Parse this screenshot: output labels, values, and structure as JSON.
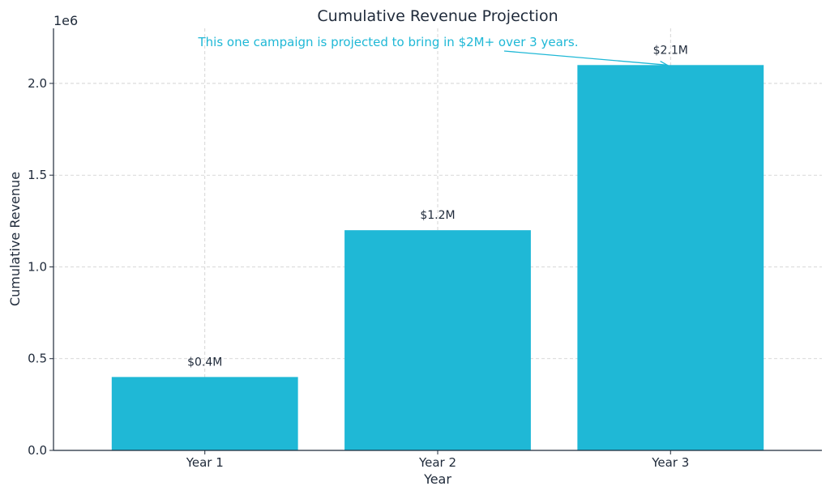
{
  "chart_data": {
    "type": "bar",
    "title": "Cumulative Revenue Projection",
    "xlabel": "Year",
    "ylabel": "Cumulative Revenue",
    "offset_label": "1e6",
    "categories": [
      "Year 1",
      "Year 2",
      "Year 3"
    ],
    "values": [
      400000,
      1200000,
      2100000
    ],
    "data_labels": [
      "$0.4M",
      "$1.2M",
      "$2.1M"
    ],
    "ylim": [
      0,
      2300000
    ],
    "yticks": [
      0,
      500000,
      1000000,
      1500000,
      2000000
    ],
    "ytick_labels": [
      "0.0",
      "0.5",
      "1.0",
      "1.5",
      "2.0"
    ],
    "grid": true,
    "bar_color": "#1fb8d6",
    "annotation": {
      "text": "This one campaign is projected to bring in $2M+ over 3 years.",
      "target_category": "Year 3",
      "color": "#1fb8d6"
    }
  }
}
